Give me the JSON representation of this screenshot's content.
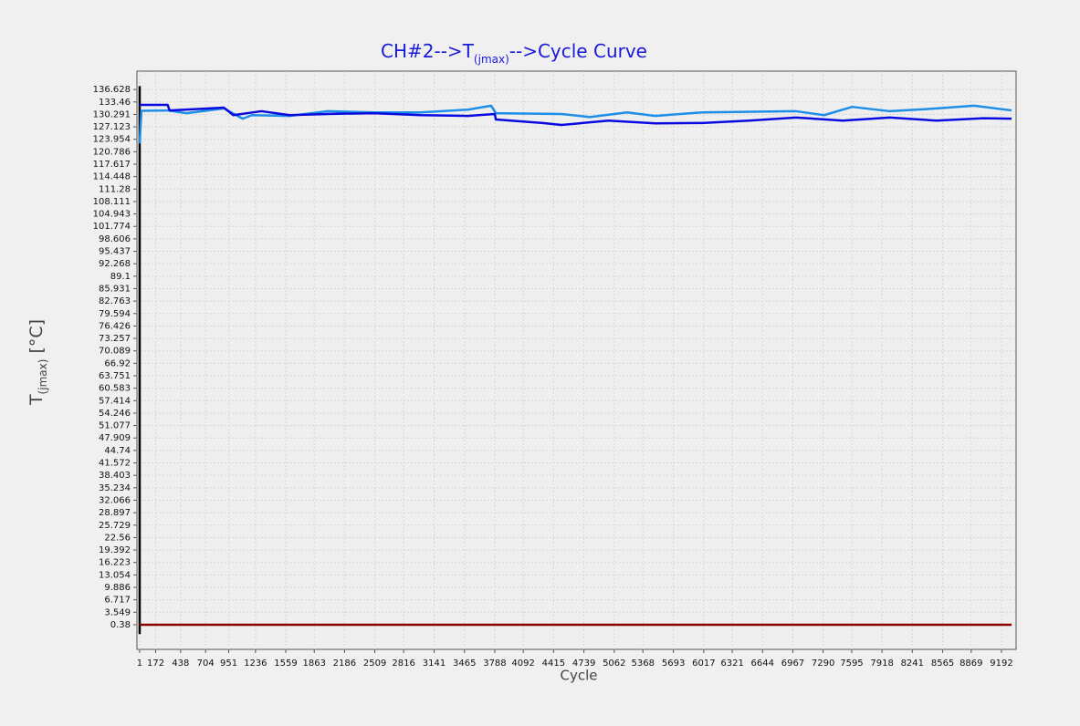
{
  "chart_data": {
    "type": "line",
    "title": [
      "CH#2-->T",
      "(jmax)",
      "-->Cycle Curve"
    ],
    "x_label": "Cycle",
    "y_label": [
      "T",
      "(jmax)",
      " [°C]"
    ],
    "xlim": [
      -28,
      9348
    ],
    "ylim": [
      -5.9,
      141.3
    ],
    "xticks": [
      1,
      172,
      438,
      704,
      951,
      1236,
      1559,
      1863,
      2186,
      2509,
      2816,
      3141,
      3465,
      3788,
      4092,
      4415,
      4739,
      5062,
      5368,
      5693,
      6017,
      6321,
      6644,
      6967,
      7290,
      7595,
      7918,
      8241,
      8565,
      8869,
      9192
    ],
    "yticks": [
      0.38,
      3.549,
      6.717,
      9.886,
      13.054,
      16.223,
      19.392,
      22.56,
      25.729,
      28.897,
      32.066,
      35.234,
      38.403,
      41.572,
      44.74,
      47.909,
      51.077,
      54.246,
      57.414,
      60.583,
      63.751,
      66.92,
      70.089,
      73.257,
      76.426,
      79.594,
      82.763,
      85.931,
      89.1,
      92.268,
      95.437,
      98.606,
      101.774,
      104.943,
      108.111,
      111.28,
      114.448,
      117.617,
      120.786,
      123.954,
      127.123,
      130.291,
      133.46,
      136.628
    ],
    "grid": true,
    "series": [
      {
        "color": "#000000",
        "x": [
          1,
          1
        ],
        "values": [
          137.5,
          -2.0
        ]
      },
      {
        "color": "#8b0000",
        "x": [
          1,
          9300
        ],
        "values": [
          0.38,
          0.38
        ]
      },
      {
        "color": "#1e8fe8",
        "x": [
          1,
          20,
          300,
          500,
          900,
          1100,
          1200,
          1600,
          2000,
          2500,
          3000,
          3500,
          3750,
          3800,
          4500,
          4800,
          5200,
          5500,
          6000,
          7000,
          7300,
          7600,
          8000,
          8500,
          8900,
          9300
        ],
        "values": [
          122.9,
          131.2,
          131.3,
          130.6,
          131.8,
          129.2,
          130.1,
          129.9,
          131.1,
          130.8,
          130.8,
          131.5,
          132.5,
          130.6,
          130.4,
          129.6,
          130.8,
          129.9,
          130.8,
          131.1,
          130.1,
          132.2,
          131.1,
          131.8,
          132.5,
          131.3
        ]
      },
      {
        "color": "#0a0ae0",
        "x": [
          1,
          300,
          320,
          900,
          1000,
          1300,
          1600,
          2000,
          2500,
          3000,
          3500,
          3788,
          3800,
          4300,
          4500,
          5000,
          5500,
          6000,
          6500,
          7000,
          7500,
          8000,
          8500,
          9000,
          9300
        ],
        "values": [
          132.7,
          132.7,
          131.3,
          132.0,
          130.1,
          131.1,
          130.1,
          130.4,
          130.6,
          130.1,
          129.9,
          130.4,
          129.0,
          128.1,
          127.6,
          128.7,
          128.0,
          128.1,
          128.7,
          129.5,
          128.7,
          129.5,
          128.7,
          129.3,
          129.2
        ]
      }
    ]
  }
}
